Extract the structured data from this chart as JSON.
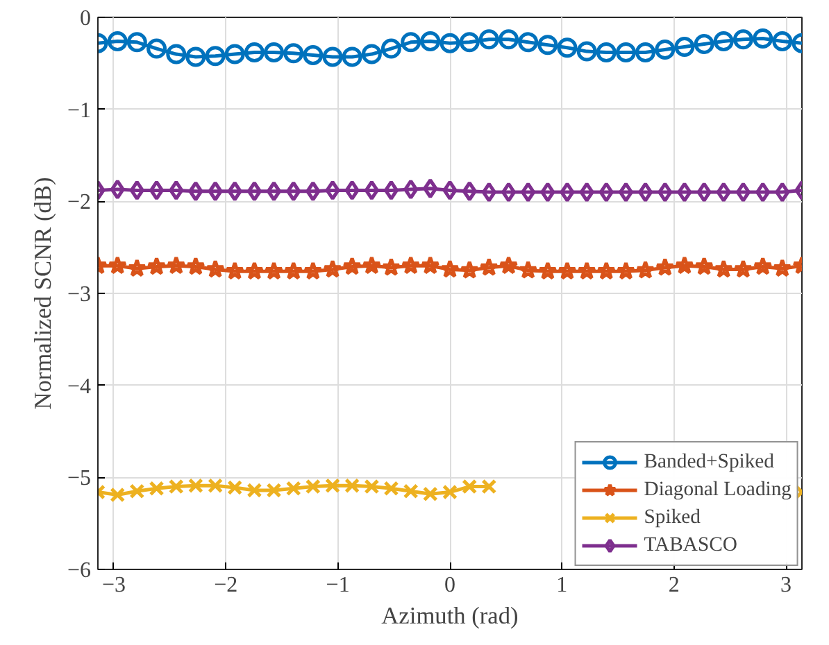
{
  "chart_data": {
    "type": "line",
    "xlabel": "Azimuth (rad)",
    "ylabel": "Normalized SCNR (dB)",
    "x": [
      -3.142,
      -2.967,
      -2.793,
      -2.618,
      -2.443,
      -2.269,
      -2.094,
      -1.92,
      -1.745,
      -1.571,
      -1.396,
      -1.222,
      -1.047,
      -0.873,
      -0.698,
      -0.524,
      -0.349,
      -0.175,
      0,
      0.175,
      0.349,
      0.524,
      0.698,
      0.873,
      1.047,
      1.222,
      1.396,
      1.571,
      1.745,
      1.92,
      2.094,
      2.269,
      2.443,
      2.618,
      2.793,
      2.967,
      3.142
    ],
    "series": [
      {
        "name": "Banded+Spiked",
        "color": "#0072bd",
        "marker": "circle",
        "values": [
          -0.28,
          -0.26,
          -0.27,
          -0.34,
          -0.4,
          -0.43,
          -0.42,
          -0.4,
          -0.38,
          -0.38,
          -0.39,
          -0.41,
          -0.43,
          -0.43,
          -0.4,
          -0.34,
          -0.27,
          -0.26,
          -0.28,
          -0.27,
          -0.24,
          -0.24,
          -0.27,
          -0.3,
          -0.33,
          -0.37,
          -0.38,
          -0.38,
          -0.38,
          -0.35,
          -0.32,
          -0.29,
          -0.26,
          -0.24,
          -0.23,
          -0.26,
          -0.28
        ]
      },
      {
        "name": "Diagonal Loading",
        "color": "#d95319",
        "marker": "star",
        "values": [
          -2.7,
          -2.7,
          -2.73,
          -2.71,
          -2.7,
          -2.71,
          -2.74,
          -2.76,
          -2.76,
          -2.76,
          -2.76,
          -2.76,
          -2.74,
          -2.71,
          -2.7,
          -2.72,
          -2.7,
          -2.7,
          -2.74,
          -2.75,
          -2.72,
          -2.7,
          -2.75,
          -2.76,
          -2.76,
          -2.76,
          -2.76,
          -2.76,
          -2.75,
          -2.72,
          -2.7,
          -2.71,
          -2.74,
          -2.74,
          -2.71,
          -2.73,
          -2.7
        ]
      },
      {
        "name": "Spiked",
        "color": "#edb120",
        "marker": "cross",
        "values": [
          -5.16,
          -5.19,
          -5.15,
          -5.12,
          -5.1,
          -5.09,
          -5.09,
          -5.11,
          -5.14,
          -5.14,
          -5.12,
          -5.1,
          -5.09,
          -5.09,
          -5.1,
          -5.12,
          -5.15,
          -5.18,
          -5.16,
          -5.1,
          -5.1,
          null,
          null,
          null,
          null,
          null,
          null,
          null,
          null,
          null,
          null,
          null,
          null,
          null,
          null,
          null,
          -5.16
        ]
      },
      {
        "name": "TABASCO",
        "color": "#7e2f8e",
        "marker": "diamond",
        "values": [
          -1.88,
          -1.87,
          -1.88,
          -1.88,
          -1.88,
          -1.89,
          -1.89,
          -1.89,
          -1.89,
          -1.89,
          -1.89,
          -1.89,
          -1.88,
          -1.88,
          -1.88,
          -1.88,
          -1.87,
          -1.86,
          -1.88,
          -1.89,
          -1.9,
          -1.9,
          -1.9,
          -1.9,
          -1.9,
          -1.9,
          -1.9,
          -1.9,
          -1.9,
          -1.9,
          -1.9,
          -1.9,
          -1.9,
          -1.9,
          -1.9,
          -1.9,
          -1.88
        ]
      }
    ],
    "xlim": [
      -3.142,
      3.142
    ],
    "ylim": [
      -6,
      0
    ],
    "xticks": [
      -3,
      -2,
      -1,
      0,
      1,
      2,
      3
    ],
    "yticks": [
      -6,
      -5,
      -4,
      -3,
      -2,
      -1,
      0
    ],
    "grid": true,
    "legend": "bottom right"
  }
}
